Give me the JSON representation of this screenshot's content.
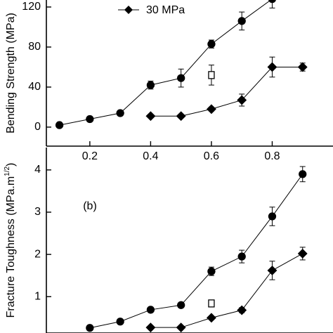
{
  "chart_data": [
    {
      "type": "line",
      "ylabel": "Bending Strength (MPa)",
      "xlim": [
        0.057,
        1.0
      ],
      "ylim": [
        -19,
        127
      ],
      "xticks": [
        0.2,
        0.4,
        0.6,
        0.8
      ],
      "yticks": [
        0,
        40,
        80,
        120
      ],
      "legend": "upper-center",
      "series": [
        {
          "marker": "circle",
          "filled": true,
          "color": "#000000",
          "x": [
            0.1,
            0.2,
            0.3,
            0.4,
            0.5,
            0.6,
            0.7,
            0.8
          ],
          "values": [
            2,
            8,
            14,
            42,
            49,
            83,
            106,
            128
          ],
          "errors": [
            1,
            1,
            2,
            4,
            9,
            4,
            9,
            9
          ]
        },
        {
          "name": "30 MPa",
          "marker": "diamond",
          "filled": true,
          "color": "#000000",
          "x": [
            0.4,
            0.5,
            0.6,
            0.7,
            0.8,
            0.9
          ],
          "values": [
            11,
            11,
            18,
            27,
            60,
            60
          ],
          "errors": [
            1,
            1,
            2,
            6,
            10,
            4
          ]
        },
        {
          "marker": "square",
          "filled": false,
          "color": "#000000",
          "x": [
            0.6
          ],
          "values": [
            52
          ],
          "errors": [
            10
          ]
        }
      ]
    },
    {
      "type": "line",
      "annotation": "(b)",
      "ylabel": "Fracture Toughness (MPa.m",
      "ylabel_sup": "1/2",
      "ylabel_end": ")",
      "xlim": [
        0.057,
        1.0
      ],
      "ylim": [
        0.14,
        4.53
      ],
      "yticks": [
        1,
        2,
        3,
        4
      ],
      "series": [
        {
          "marker": "circle",
          "filled": true,
          "color": "#000000",
          "x": [
            0.2,
            0.3,
            0.4,
            0.5,
            0.6,
            0.7,
            0.8,
            0.9
          ],
          "values": [
            0.26,
            0.41,
            0.69,
            0.8,
            1.6,
            1.95,
            2.9,
            3.9
          ],
          "errors": [
            0.02,
            0.03,
            0.03,
            0.04,
            0.1,
            0.15,
            0.22,
            0.18
          ]
        },
        {
          "marker": "diamond",
          "filled": true,
          "color": "#000000",
          "x": [
            0.4,
            0.5,
            0.6,
            0.7,
            0.8,
            0.9
          ],
          "values": [
            0.27,
            0.27,
            0.5,
            0.68,
            1.62,
            2.02
          ],
          "errors": [
            0.02,
            0.02,
            0.03,
            0.06,
            0.22,
            0.15
          ]
        },
        {
          "marker": "square",
          "filled": false,
          "color": "#000000",
          "x": [
            0.6
          ],
          "values": [
            0.84
          ],
          "errors": [
            0.07
          ]
        }
      ]
    }
  ]
}
